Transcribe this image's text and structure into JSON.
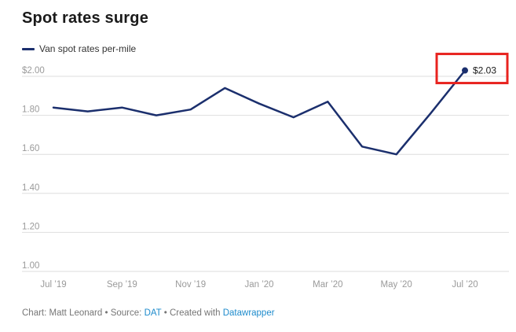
{
  "title": "Spot rates surge",
  "legend": {
    "label": "Van spot rates per-mile"
  },
  "chart_data": {
    "type": "line",
    "title": "Spot rates surge",
    "xlabel": "",
    "ylabel": "",
    "categories": [
      "Jul ’19",
      "Aug ’19",
      "Sep ’19",
      "Oct ’19",
      "Nov ’19",
      "Dec ’19",
      "Jan ’20",
      "Feb ’20",
      "Mar ’20",
      "Apr ’20",
      "May ’20",
      "Jun ’20",
      "Jul ’20"
    ],
    "series": [
      {
        "name": "Van spot rates per-mile",
        "values": [
          1.84,
          1.82,
          1.84,
          1.8,
          1.83,
          1.94,
          1.86,
          1.79,
          1.87,
          1.64,
          1.6,
          1.81,
          2.03
        ]
      }
    ],
    "y_ticks": [
      {
        "value": 2.0,
        "label": "$2.00"
      },
      {
        "value": 1.8,
        "label": "1.80"
      },
      {
        "value": 1.6,
        "label": "1.60"
      },
      {
        "value": 1.4,
        "label": "1.40"
      },
      {
        "value": 1.2,
        "label": "1.20"
      },
      {
        "value": 1.0,
        "label": "1.00"
      }
    ],
    "x_tick_labels": [
      "Jul ’19",
      "Sep ’19",
      "Nov ’19",
      "Jan ’20",
      "Mar ’20",
      "May ’20",
      "Jul ’20"
    ],
    "ylim": [
      1.0,
      2.0
    ],
    "grid": true,
    "legend_position": "top-left",
    "annotation": {
      "label": "$2.03",
      "value": 2.03,
      "category": "Jul ’20"
    }
  },
  "colors": {
    "line": "#1b2f6d",
    "annotation_box": "#e8231f",
    "link": "#1e8bcc",
    "grid": "#dedede",
    "tick_label": "#9a9a9a"
  },
  "footer": {
    "chart_credit": "Chart: Matt Leonard",
    "separator": "•",
    "source_prefix": "Source:",
    "source_link": "DAT",
    "created_prefix": "Created with",
    "created_link": "Datawrapper"
  }
}
